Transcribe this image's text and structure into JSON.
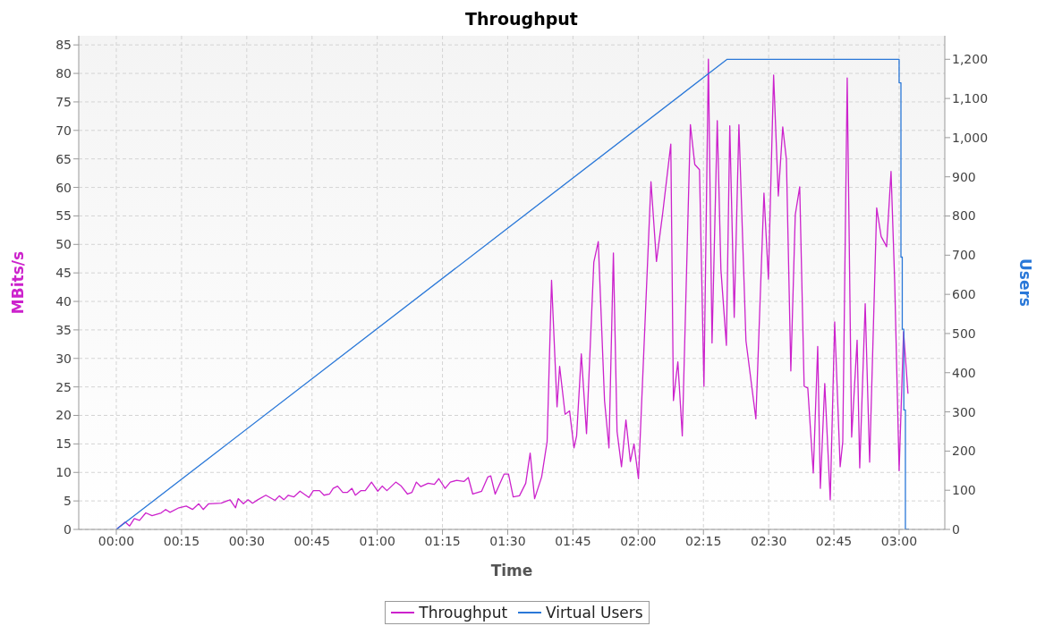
{
  "chart_data": {
    "type": "line",
    "title": "Throughput",
    "xlabel": "Time",
    "ylabel": "MBits/s",
    "y2label": "Users",
    "xlim": [
      -0.144,
      3.175
    ],
    "xticks": [
      {
        "value": 0,
        "label": "00:00"
      },
      {
        "value": 0.25,
        "label": "00:15"
      },
      {
        "value": 0.5,
        "label": "00:30"
      },
      {
        "value": 0.75,
        "label": "00:45"
      },
      {
        "value": 1,
        "label": "01:00"
      },
      {
        "value": 1.25,
        "label": "01:15"
      },
      {
        "value": 1.5,
        "label": "01:30"
      },
      {
        "value": 1.75,
        "label": "01:45"
      },
      {
        "value": 2,
        "label": "02:00"
      },
      {
        "value": 2.25,
        "label": "02:15"
      },
      {
        "value": 2.5,
        "label": "02:30"
      },
      {
        "value": 2.75,
        "label": "02:45"
      },
      {
        "value": 3,
        "label": "03:00"
      }
    ],
    "ylim": [
      0,
      86.6
    ],
    "yticks": [
      0,
      5,
      10,
      15,
      20,
      25,
      30,
      35,
      40,
      45,
      50,
      55,
      60,
      65,
      70,
      75,
      80,
      85
    ],
    "y2lim": [
      0,
      1260
    ],
    "y2ticks": [
      0,
      100,
      200,
      300,
      400,
      500,
      600,
      700,
      800,
      900,
      {
        "value": 1000,
        "label": "1,000"
      },
      {
        "value": 1100,
        "label": "1,100"
      },
      {
        "value": 1200,
        "label": "1,200"
      }
    ],
    "grid": true,
    "legend": "bottom",
    "marker": "none",
    "line_style": "solid",
    "series": [
      {
        "name": "Throughput",
        "color": "#cc22cc",
        "x": [
          0,
          0.034,
          0.051,
          0.069,
          0.089,
          0.113,
          0.137,
          0.172,
          0.189,
          0.206,
          0.24,
          0.268,
          0.292,
          0.316,
          0.333,
          0.354,
          0.402,
          0.436,
          0.457,
          0.467,
          0.487,
          0.505,
          0.522,
          0.542,
          0.573,
          0.608,
          0.625,
          0.642,
          0.659,
          0.68,
          0.704,
          0.738,
          0.755,
          0.779,
          0.796,
          0.817,
          0.831,
          0.848,
          0.868,
          0.886,
          0.903,
          0.916,
          0.937,
          0.954,
          0.978,
          1.002,
          1.019,
          1.037,
          1.071,
          1.092,
          1.116,
          1.133,
          1.15,
          1.167,
          1.195,
          1.219,
          1.236,
          1.26,
          1.28,
          1.304,
          1.332,
          1.349,
          1.366,
          1.4,
          1.424,
          1.435,
          1.452,
          1.486,
          1.503,
          1.521,
          1.545,
          1.569,
          1.586,
          1.603,
          1.63,
          1.651,
          1.668,
          1.689,
          1.699,
          1.72,
          1.737,
          1.754,
          1.764,
          1.782,
          1.802,
          1.83,
          1.847,
          1.871,
          1.888,
          1.905,
          1.919,
          1.936,
          1.953,
          1.97,
          1.984,
          2.001,
          2.049,
          2.07,
          2.094,
          2.125,
          2.135,
          2.152,
          2.169,
          2.2,
          2.217,
          2.235,
          2.252,
          2.269,
          2.283,
          2.303,
          2.317,
          2.338,
          2.351,
          2.368,
          2.386,
          2.413,
          2.451,
          2.482,
          2.499,
          2.519,
          2.537,
          2.554,
          2.568,
          2.585,
          2.602,
          2.619,
          2.636,
          2.65,
          2.671,
          2.688,
          2.698,
          2.715,
          2.736,
          2.753,
          2.774,
          2.784,
          2.801,
          2.818,
          2.839,
          2.849,
          2.87,
          2.887,
          2.914,
          2.931,
          2.952,
          2.969,
          2.983,
          3,
          3.017,
          3.034
        ],
        "values": [
          0,
          1.3,
          0.6,
          1.9,
          1.6,
          2.9,
          2.4,
          2.9,
          3.5,
          3,
          3.8,
          4.1,
          3.5,
          4.5,
          3.5,
          4.5,
          4.6,
          5.2,
          3.8,
          5.4,
          4.5,
          5.2,
          4.6,
          5.2,
          6,
          5.1,
          5.9,
          5.2,
          6,
          5.7,
          6.7,
          5.6,
          6.8,
          6.8,
          6,
          6.2,
          7.2,
          7.6,
          6.5,
          6.5,
          7.2,
          6,
          6.8,
          6.8,
          8.3,
          6.7,
          7.6,
          6.8,
          8.3,
          7.6,
          6.2,
          6.5,
          8.3,
          7.5,
          8.1,
          7.9,
          8.9,
          7.2,
          8.3,
          8.6,
          8.4,
          9.1,
          6.2,
          6.7,
          9.2,
          9.4,
          6.2,
          9.7,
          9.7,
          5.7,
          5.9,
          8.1,
          13.4,
          5.4,
          9.2,
          15.4,
          43.7,
          21.5,
          28.6,
          20.2,
          20.8,
          14.3,
          16.4,
          30.8,
          16.8,
          46.9,
          50.5,
          22.6,
          14.3,
          48.5,
          17.2,
          11,
          19.2,
          11.9,
          15,
          8.9,
          61,
          47,
          55.5,
          67.6,
          22.6,
          29.4,
          16.4,
          71,
          64,
          63.1,
          25.1,
          82.5,
          32.7,
          71.7,
          45.6,
          32.3,
          70.8,
          37.2,
          71,
          33.1,
          19.4,
          59,
          43.9,
          79.7,
          58.5,
          70.6,
          64.9,
          27.8,
          55.2,
          60.1,
          25.1,
          24.8,
          9.9,
          32.1,
          7.2,
          25.6,
          5.2,
          36.4,
          11,
          15.4,
          79.2,
          16.2,
          33.2,
          10.8,
          39.6,
          11.8,
          56.4,
          51.4,
          49.6,
          62.8,
          43.4,
          10.3,
          34.7,
          23.8
        ]
      },
      {
        "name": "Virtual Users",
        "color": "#2a78d8",
        "axis": "y2",
        "x": [
          0,
          2.341,
          3,
          3,
          3.007,
          3.007,
          3.012,
          3.012,
          3.018,
          3.018,
          3.024,
          3.024,
          3.038
        ],
        "values": [
          0,
          1200,
          1200,
          1140,
          1140,
          695,
          695,
          511,
          511,
          305,
          305,
          0,
          0
        ]
      }
    ]
  }
}
